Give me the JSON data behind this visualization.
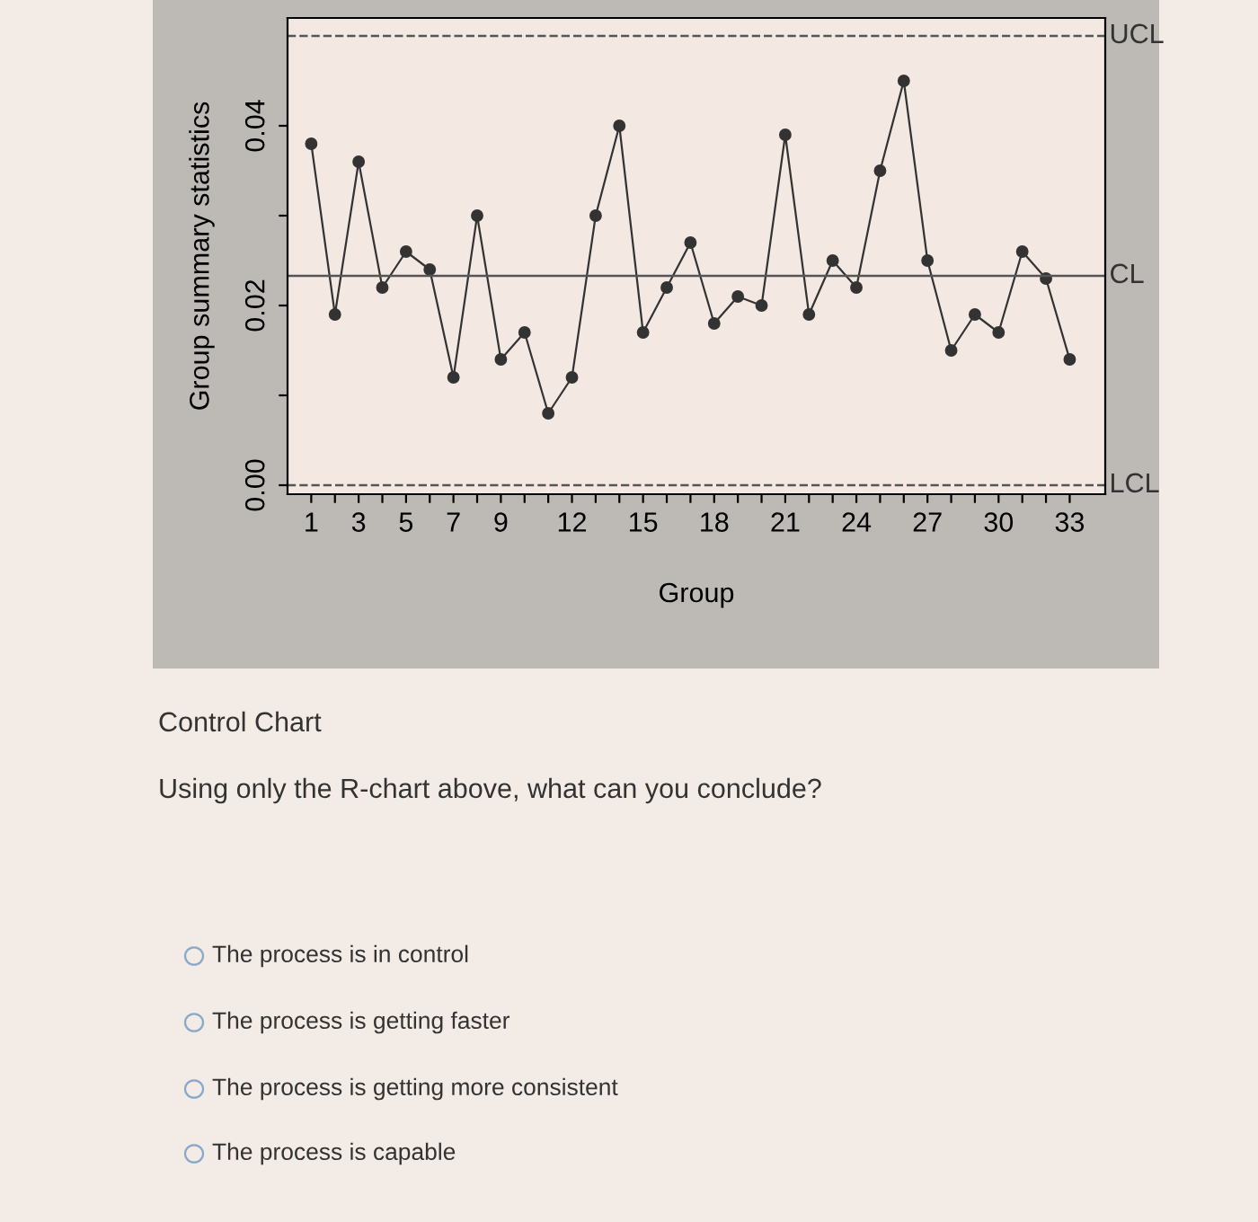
{
  "chart_data": {
    "type": "line",
    "xlabel": "Group",
    "ylabel": "Group summary statistics",
    "x": [
      1,
      2,
      3,
      4,
      5,
      6,
      7,
      8,
      9,
      10,
      11,
      12,
      13,
      14,
      15,
      16,
      17,
      18,
      19,
      20,
      21,
      22,
      23,
      24,
      25,
      26,
      27,
      28,
      29,
      30,
      31,
      32,
      33
    ],
    "series": [
      {
        "color": "#333333",
        "values": [
          0.038,
          0.019,
          0.036,
          0.022,
          0.026,
          0.024,
          0.012,
          0.03,
          0.014,
          0.017,
          0.008,
          0.012,
          0.03,
          0.04,
          0.017,
          0.022,
          0.027,
          0.018,
          0.021,
          0.02,
          0.039,
          0.019,
          0.025,
          0.022,
          0.035,
          0.045,
          0.025,
          0.015,
          0.019,
          0.017,
          0.026,
          0.023,
          0.014
        ]
      }
    ],
    "marker": "circle",
    "line_style": "solid",
    "xlim": [
      0,
      34.5
    ],
    "ylim": [
      -0.001,
      0.052
    ],
    "xticks": [
      {
        "value": 1,
        "label": "1"
      },
      {
        "value": 2,
        "label": null
      },
      {
        "value": 3,
        "label": "3"
      },
      {
        "value": 4,
        "label": null
      },
      {
        "value": 5,
        "label": "5"
      },
      {
        "value": 6,
        "label": null
      },
      {
        "value": 7,
        "label": "7"
      },
      {
        "value": 8,
        "label": null
      },
      {
        "value": 9,
        "label": "9"
      },
      {
        "value": 10,
        "label": null
      },
      {
        "value": 11,
        "label": null
      },
      {
        "value": 12,
        "label": "12"
      },
      {
        "value": 13,
        "label": null
      },
      {
        "value": 14,
        "label": null
      },
      {
        "value": 15,
        "label": "15"
      },
      {
        "value": 16,
        "label": null
      },
      {
        "value": 17,
        "label": null
      },
      {
        "value": 18,
        "label": "18"
      },
      {
        "value": 19,
        "label": null
      },
      {
        "value": 20,
        "label": null
      },
      {
        "value": 21,
        "label": "21"
      },
      {
        "value": 22,
        "label": null
      },
      {
        "value": 23,
        "label": null
      },
      {
        "value": 24,
        "label": "24"
      },
      {
        "value": 25,
        "label": null
      },
      {
        "value": 26,
        "label": null
      },
      {
        "value": 27,
        "label": "27"
      },
      {
        "value": 28,
        "label": null
      },
      {
        "value": 29,
        "label": null
      },
      {
        "value": 30,
        "label": "30"
      },
      {
        "value": 31,
        "label": null
      },
      {
        "value": 32,
        "label": null
      },
      {
        "value": 33,
        "label": "33"
      }
    ],
    "yticks": [
      {
        "value": 0,
        "label": "0.00"
      },
      {
        "value": 0.01,
        "label": null
      },
      {
        "value": 0.02,
        "label": "0.02"
      },
      {
        "value": 0.03,
        "label": null
      },
      {
        "value": 0.04,
        "label": "0.04"
      }
    ],
    "ref_lines": [
      {
        "axis": "y",
        "value": 0.05,
        "label": "UCL",
        "color": "#555555",
        "line_style": "dashed"
      },
      {
        "axis": "y",
        "value": 0.0233,
        "label": "CL",
        "color": "#555555",
        "line_style": "solid"
      },
      {
        "axis": "y",
        "value": 0,
        "label": "LCL",
        "color": "#555555",
        "line_style": "dashed"
      }
    ],
    "grid": false,
    "legend": false,
    "annotations": [
      "Control Chart",
      "Using only the R-chart above, what can you conclude?",
      "The process is in control",
      "The process is getting faster",
      "The process is getting more consistent",
      "The process is capable"
    ]
  }
}
